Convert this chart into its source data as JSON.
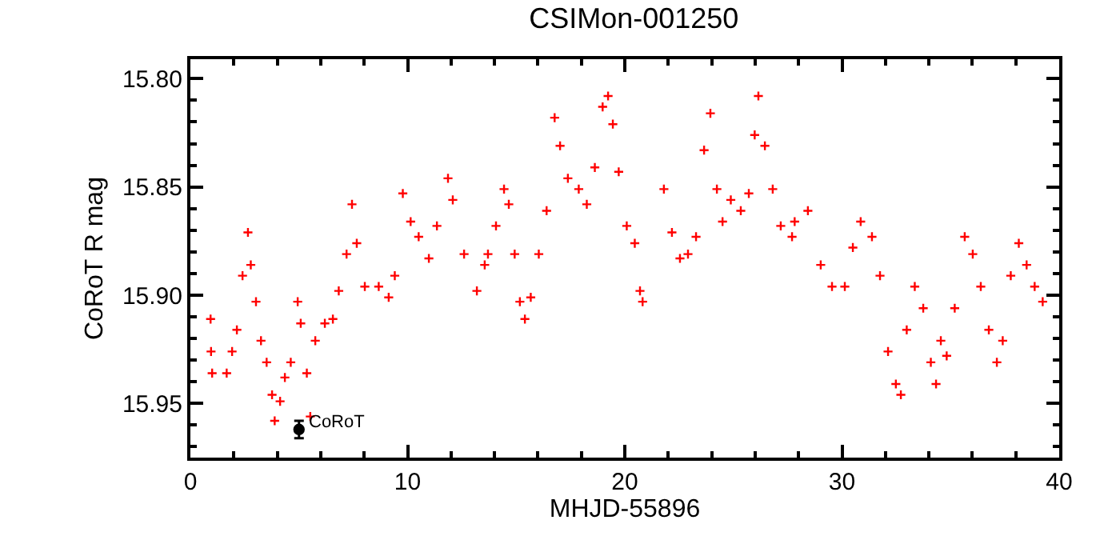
{
  "chart_data": {
    "type": "scatter",
    "title": "CSIMon-001250",
    "xlabel": "MHJD-55896",
    "ylabel": "CoRoT R mag",
    "xlim": [
      0,
      40
    ],
    "xticks": [
      0,
      10,
      20,
      30,
      40
    ],
    "ylim": [
      15.975,
      15.791
    ],
    "yticks": [
      {
        "value": 15.8,
        "label": "15.80"
      },
      {
        "value": 15.85,
        "label": "15.85"
      },
      {
        "value": 15.9,
        "label": "15.90"
      },
      {
        "value": 15.95,
        "label": "15.95"
      }
    ],
    "marker": "cross",
    "annotations": [
      {
        "text": "CoRoT",
        "x": 5.0,
        "y": 15.962
      }
    ],
    "series": [
      {
        "color": "#ff0000",
        "x": [
          0.93,
          0.95,
          1.0,
          1.67,
          1.92,
          2.14,
          2.4,
          2.65,
          2.78,
          3.02,
          3.25,
          3.51,
          3.76,
          3.88,
          4.13,
          4.35,
          4.62,
          4.94,
          5.08,
          5.36,
          5.52,
          5.75,
          6.19,
          6.56,
          6.83,
          7.19,
          7.44,
          7.66,
          8.03,
          8.67,
          9.13,
          9.41,
          9.78,
          10.14,
          10.51,
          10.98,
          11.35,
          11.86,
          12.08,
          12.6,
          13.19,
          13.55,
          13.7,
          14.07,
          14.44,
          14.66,
          14.93,
          15.17,
          15.4,
          15.67,
          16.04,
          16.4,
          16.77,
          17.02,
          17.38,
          17.88,
          18.25,
          18.62,
          18.98,
          19.23,
          19.45,
          19.72,
          20.09,
          20.46,
          20.7,
          20.82,
          21.8,
          22.17,
          22.54,
          22.91,
          23.28,
          23.65,
          23.94,
          24.24,
          24.5,
          24.88,
          25.34,
          25.71,
          25.98,
          26.15,
          26.45,
          26.81,
          27.18,
          27.7,
          27.82,
          28.43,
          29.02,
          29.54,
          30.13,
          30.5,
          30.86,
          31.38,
          31.75,
          32.12,
          32.48,
          32.71,
          32.98,
          33.35,
          33.74,
          34.09,
          34.33,
          34.55,
          34.82,
          35.19,
          35.65,
          36.02,
          36.39,
          36.76,
          37.13,
          37.4,
          37.77,
          38.14,
          38.5,
          38.87,
          39.24
        ],
        "values": [
          15.911,
          15.926,
          15.936,
          15.936,
          15.926,
          15.916,
          15.891,
          15.871,
          15.886,
          15.903,
          15.921,
          15.931,
          15.946,
          15.958,
          15.949,
          15.938,
          15.931,
          15.903,
          15.913,
          15.936,
          15.956,
          15.921,
          15.913,
          15.911,
          15.898,
          15.881,
          15.858,
          15.876,
          15.896,
          15.896,
          15.901,
          15.891,
          15.853,
          15.866,
          15.873,
          15.883,
          15.868,
          15.846,
          15.856,
          15.881,
          15.898,
          15.886,
          15.881,
          15.868,
          15.851,
          15.858,
          15.881,
          15.903,
          15.911,
          15.901,
          15.881,
          15.861,
          15.818,
          15.831,
          15.846,
          15.851,
          15.858,
          15.841,
          15.813,
          15.808,
          15.821,
          15.843,
          15.868,
          15.876,
          15.898,
          15.903,
          15.851,
          15.871,
          15.883,
          15.881,
          15.873,
          15.833,
          15.816,
          15.851,
          15.866,
          15.856,
          15.861,
          15.853,
          15.826,
          15.808,
          15.831,
          15.851,
          15.868,
          15.873,
          15.866,
          15.861,
          15.886,
          15.896,
          15.896,
          15.878,
          15.866,
          15.873,
          15.891,
          15.926,
          15.941,
          15.946,
          15.916,
          15.896,
          15.906,
          15.931,
          15.941,
          15.921,
          15.928,
          15.906,
          15.873,
          15.881,
          15.896,
          15.916,
          15.931,
          15.921,
          15.891,
          15.876,
          15.886,
          15.896,
          15.903
        ]
      },
      {
        "color": "#000000",
        "x": [
          5.0
        ],
        "values": [
          15.962
        ],
        "errors": [
          0.004
        ],
        "marker": "circle"
      }
    ]
  }
}
